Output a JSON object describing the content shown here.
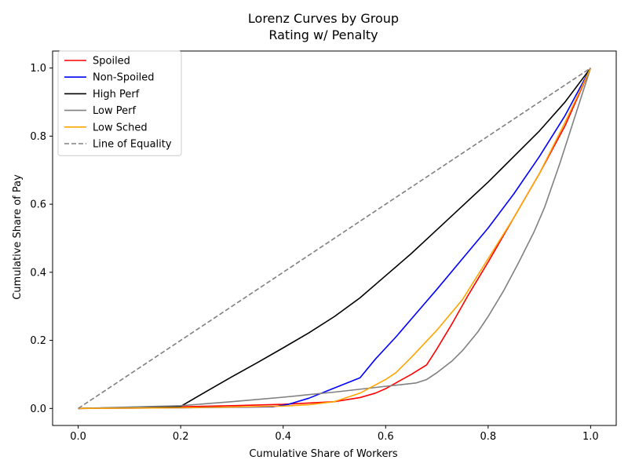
{
  "chart_data": {
    "type": "line",
    "title": "Lorenz Curves by Group",
    "subtitle": "Rating w/ Penalty",
    "xlabel": "Cumulative Share of Workers",
    "ylabel": "Cumulative Share of Pay",
    "xlim": [
      -0.05,
      1.05
    ],
    "ylim": [
      -0.05,
      1.05
    ],
    "xticks": [
      0.0,
      0.2,
      0.4,
      0.6,
      0.8,
      1.0
    ],
    "xtick_labels": [
      "0.0",
      "0.2",
      "0.4",
      "0.6",
      "0.8",
      "1.0"
    ],
    "yticks": [
      0.0,
      0.2,
      0.4,
      0.6,
      0.8,
      1.0
    ],
    "ytick_labels": [
      "0.0",
      "0.2",
      "0.4",
      "0.6",
      "0.8",
      "1.0"
    ],
    "grid": false,
    "legend_position": "top-left",
    "series": [
      {
        "name": "Spoiled",
        "color": "#ff0000",
        "style": "solid",
        "x": [
          0.0,
          0.1,
          0.2,
          0.3,
          0.4,
          0.5,
          0.55,
          0.58,
          0.6,
          0.62,
          0.65,
          0.68,
          0.7,
          0.73,
          0.76,
          0.8,
          0.85,
          0.9,
          0.95,
          1.0
        ],
        "y": [
          0.0,
          0.002,
          0.005,
          0.008,
          0.012,
          0.02,
          0.032,
          0.045,
          0.058,
          0.075,
          0.1,
          0.128,
          0.175,
          0.25,
          0.33,
          0.43,
          0.56,
          0.69,
          0.83,
          1.0
        ]
      },
      {
        "name": "Non-Spoiled",
        "color": "#0000ff",
        "style": "solid",
        "x": [
          0.0,
          0.2,
          0.38,
          0.41,
          0.45,
          0.5,
          0.55,
          0.58,
          0.62,
          0.66,
          0.7,
          0.75,
          0.8,
          0.85,
          0.9,
          0.95,
          1.0
        ],
        "y": [
          0.0,
          0.002,
          0.005,
          0.012,
          0.03,
          0.06,
          0.09,
          0.145,
          0.21,
          0.28,
          0.35,
          0.44,
          0.53,
          0.63,
          0.74,
          0.86,
          1.0
        ]
      },
      {
        "name": "High Perf",
        "color": "#000000",
        "style": "solid",
        "x": [
          0.0,
          0.2,
          0.25,
          0.3,
          0.35,
          0.4,
          0.45,
          0.5,
          0.55,
          0.6,
          0.65,
          0.7,
          0.75,
          0.8,
          0.85,
          0.9,
          0.95,
          1.0
        ],
        "y": [
          0.0,
          0.006,
          0.05,
          0.093,
          0.135,
          0.178,
          0.222,
          0.27,
          0.325,
          0.39,
          0.455,
          0.525,
          0.595,
          0.665,
          0.74,
          0.815,
          0.9,
          1.0
        ]
      },
      {
        "name": "Low Perf",
        "color": "#808080",
        "style": "solid",
        "x": [
          0.0,
          0.2,
          0.3,
          0.4,
          0.5,
          0.6,
          0.66,
          0.68,
          0.7,
          0.73,
          0.75,
          0.78,
          0.8,
          0.83,
          0.86,
          0.89,
          0.91,
          0.94,
          0.97,
          1.0
        ],
        "y": [
          0.0,
          0.008,
          0.02,
          0.033,
          0.048,
          0.065,
          0.075,
          0.085,
          0.105,
          0.14,
          0.17,
          0.225,
          0.27,
          0.345,
          0.43,
          0.52,
          0.59,
          0.72,
          0.86,
          1.0
        ]
      },
      {
        "name": "Low Sched",
        "color": "#ffa500",
        "style": "solid",
        "x": [
          0.0,
          0.2,
          0.3,
          0.4,
          0.45,
          0.5,
          0.55,
          0.6,
          0.62,
          0.65,
          0.7,
          0.75,
          0.8,
          0.85,
          0.9,
          0.95,
          1.0
        ],
        "y": [
          0.0,
          0.002,
          0.004,
          0.007,
          0.011,
          0.02,
          0.045,
          0.085,
          0.105,
          0.15,
          0.23,
          0.32,
          0.44,
          0.56,
          0.69,
          0.84,
          1.0
        ]
      },
      {
        "name": "Line of Equality",
        "color": "#808080",
        "style": "dashed",
        "x": [
          0.0,
          1.0
        ],
        "y": [
          0.0,
          1.0
        ]
      }
    ]
  }
}
